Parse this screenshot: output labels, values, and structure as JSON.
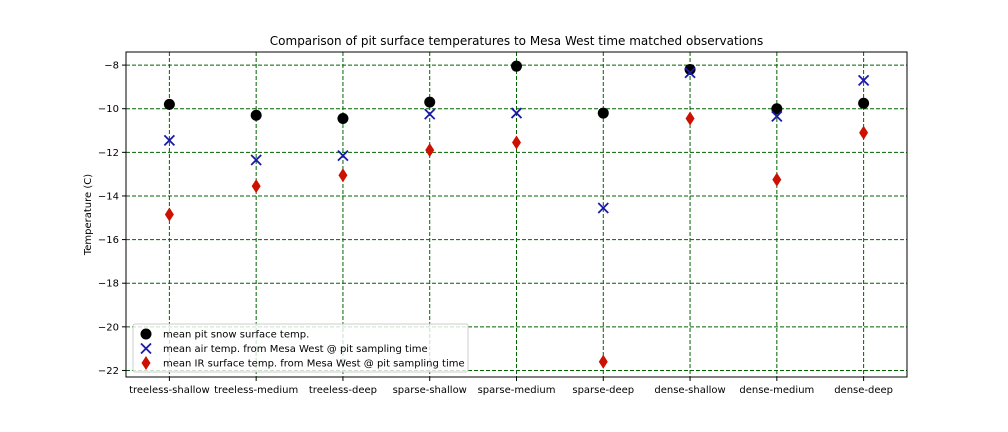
{
  "chart_data": {
    "type": "scatter",
    "title": "Comparison of pit surface temperatures to Mesa West time matched observations",
    "xlabel": "",
    "ylabel": "Temperature (C)",
    "categories": [
      "treeless-shallow",
      "treeless-medium",
      "treeless-deep",
      "sparse-shallow",
      "sparse-medium",
      "sparse-deep",
      "dense-shallow",
      "dense-medium",
      "dense-deep"
    ],
    "ylim": [
      -22.3,
      -7.4
    ],
    "yticks": [
      -22,
      -20,
      -18,
      -16,
      -14,
      -12,
      -10,
      -8
    ],
    "grid": true,
    "legend_position": "lower-left",
    "series": [
      {
        "name": "mean pit snow surface temp.",
        "marker": "circle",
        "color": "#000000",
        "values": [
          -9.8,
          -10.3,
          -10.45,
          -9.7,
          -8.05,
          -10.2,
          -8.2,
          -10.0,
          -9.75
        ]
      },
      {
        "name": "mean air temp. from Mesa West @ pit sampling time",
        "marker": "x",
        "color": "#1a1aaa",
        "values": [
          -11.45,
          -12.35,
          -12.15,
          -10.25,
          -10.2,
          -14.55,
          -8.35,
          -10.35,
          -8.7
        ]
      },
      {
        "name": "mean IR surface temp. from Mesa West @ pit sampling time",
        "marker": "diamond",
        "color": "#cc1100",
        "values": [
          -14.85,
          -13.55,
          -13.05,
          -11.9,
          -11.55,
          -21.6,
          -10.45,
          -13.25,
          -11.1
        ]
      }
    ],
    "colors": {
      "grid": "#006400",
      "axis": "#000000"
    }
  }
}
